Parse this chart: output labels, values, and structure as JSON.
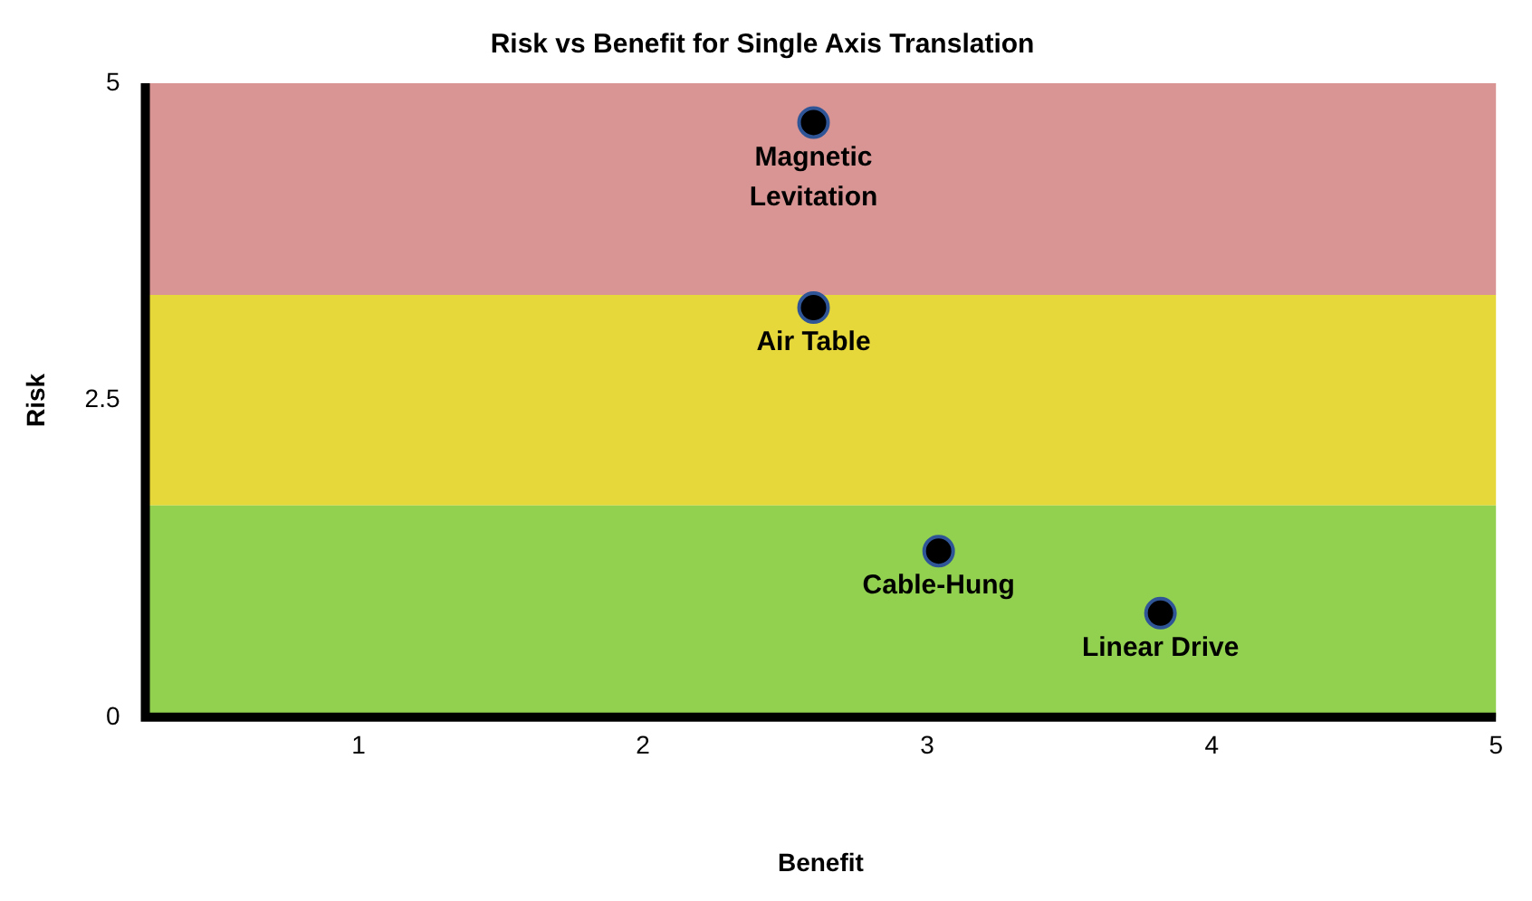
{
  "chart_data": {
    "type": "scatter",
    "title": "Risk vs Benefit for Single Axis Translation",
    "xlabel": "Benefit",
    "ylabel": "Risk",
    "x": [
      2.6,
      2.6,
      3.04,
      3.82
    ],
    "series": [
      {
        "color": "#000000",
        "values": [
          4.69,
          3.23,
          1.31,
          0.82
        ]
      }
    ],
    "xlim": [
      0.25,
      5
    ],
    "xticks": [
      1,
      2,
      3,
      4,
      5
    ],
    "ylim": [
      0,
      5
    ],
    "yticks": [
      0,
      2.5,
      5
    ],
    "grid": false,
    "legend": false,
    "marker": "circle",
    "bands": [
      {
        "axis": "y",
        "from": 3.33,
        "to": 5,
        "color": "#d99594"
      },
      {
        "axis": "y",
        "from": 1.67,
        "to": 3.33,
        "color": "#e6d83a"
      },
      {
        "axis": "y",
        "from": 0,
        "to": 1.67,
        "color": "#92d050"
      }
    ],
    "annotations": [
      {
        "text": "Magnetic Levitation",
        "x": 2.6,
        "y": 4.69
      },
      {
        "text": "Air Table",
        "x": 2.6,
        "y": 3.23
      },
      {
        "text": "Cable-Hung",
        "x": 3.04,
        "y": 1.31
      },
      {
        "text": "Linear Drive",
        "x": 3.82,
        "y": 0.82
      }
    ]
  }
}
